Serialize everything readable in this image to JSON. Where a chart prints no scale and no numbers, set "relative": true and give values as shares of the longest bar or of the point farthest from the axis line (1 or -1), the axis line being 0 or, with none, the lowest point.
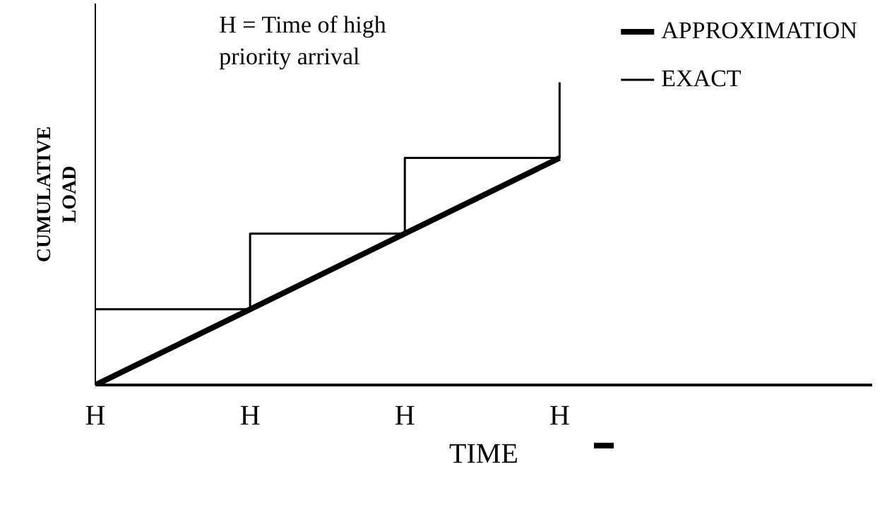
{
  "chart_data": {
    "type": "line",
    "relative": true,
    "xlabel": "TIME",
    "ylabel": "CUMULATIVE\nLOAD",
    "annotations": [
      "H = Time of high\npriority  arrival"
    ],
    "categories": [
      "H",
      "H",
      "H",
      "H",
      null,
      null
    ],
    "series": [
      {
        "name": "APPROXIMATION",
        "color": "#000000",
        "values": [
          0,
          0.25,
          0.5,
          0.75,
          null,
          null
        ]
      },
      {
        "name": "EXACT",
        "type": "step",
        "color": "#000000",
        "values": [
          0.25,
          0.5,
          0.75,
          1,
          null,
          null
        ]
      }
    ],
    "grid": false,
    "legend": "top right",
    "marker": "none",
    "line_style": "solid"
  }
}
